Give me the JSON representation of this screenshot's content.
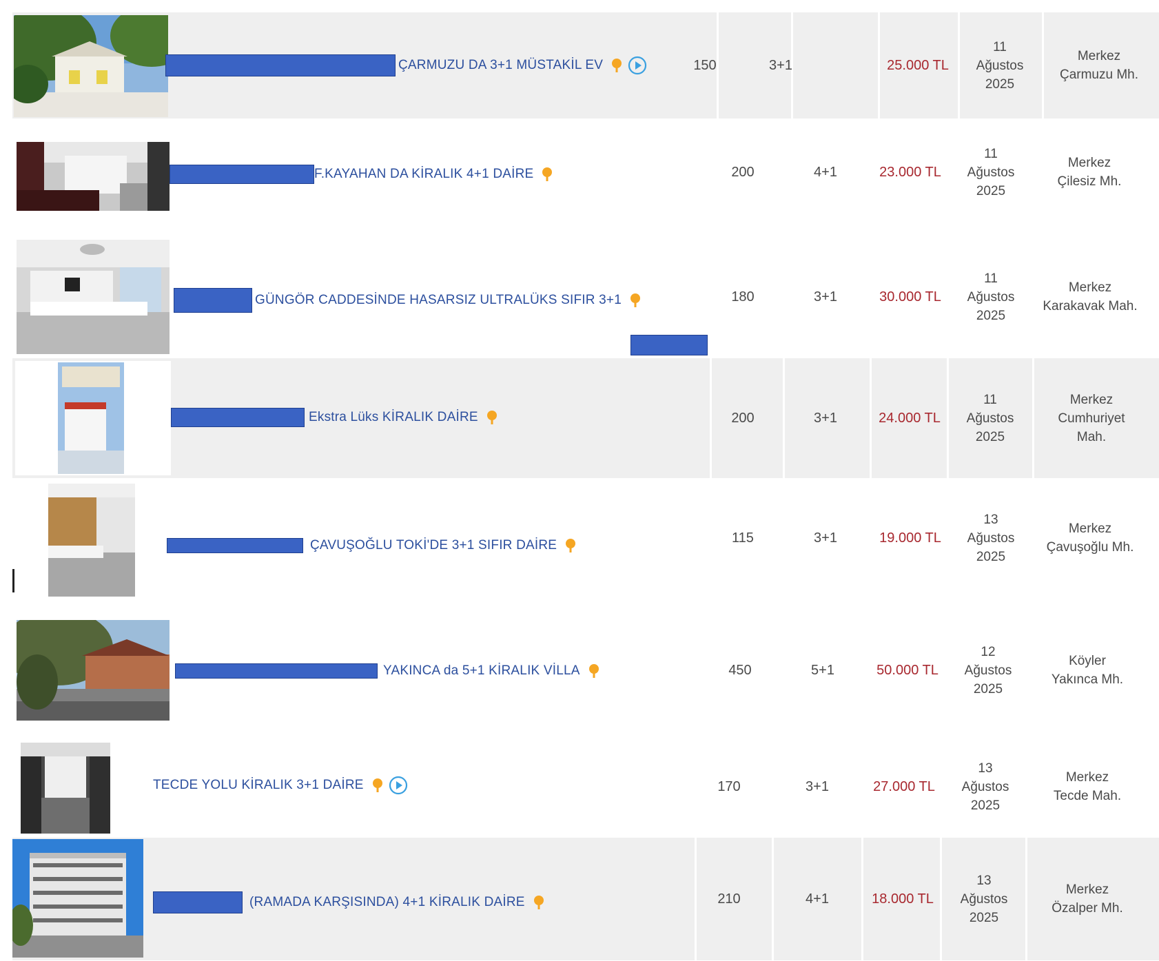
{
  "listings": [
    {
      "title": "ÇARMUZU DA 3+1 MÜSTAKİL EV",
      "m2": "150",
      "rooms": "3+1",
      "price": "25.000 TL",
      "day": "11",
      "month": "Ağustos",
      "year": "2025",
      "district": "Merkez",
      "neighborhood": "Çarmuzu Mh.",
      "has_video": true
    },
    {
      "title": "F.KAYAHAN DA KİRALIK 4+1 DAİRE",
      "m2": "200",
      "rooms": "4+1",
      "price": "23.000 TL",
      "day": "11",
      "month": "Ağustos",
      "year": "2025",
      "district": "Merkez",
      "neighborhood": "Çilesiz Mh.",
      "has_video": false
    },
    {
      "title": "GÜNGÖR CADDESİNDE HASARSIZ ULTRALÜKS SIFIR 3+1",
      "m2": "180",
      "rooms": "3+1",
      "price": "30.000 TL",
      "day": "11",
      "month": "Ağustos",
      "year": "2025",
      "district": "Merkez",
      "neighborhood": "Karakavak Mah.",
      "has_video": false
    },
    {
      "title": "Ekstra Lüks KİRALIK DAİRE",
      "m2": "200",
      "rooms": "3+1",
      "price": "24.000 TL",
      "day": "11",
      "month": "Ağustos",
      "year": "2025",
      "district": "Merkez",
      "neighborhood": "Cumhuriyet Mah.",
      "has_video": false
    },
    {
      "title": "ÇAVUŞOĞLU TOKİ'DE 3+1 SIFIR DAİRE",
      "m2": "115",
      "rooms": "3+1",
      "price": "19.000 TL",
      "day": "13",
      "month": "Ağustos",
      "year": "2025",
      "district": "Merkez",
      "neighborhood": "Çavuşoğlu Mh.",
      "has_video": false
    },
    {
      "title": "YAKINCA da 5+1 KİRALIK VİLLA",
      "m2": "450",
      "rooms": "5+1",
      "price": "50.000 TL",
      "day": "12",
      "month": "Ağustos",
      "year": "2025",
      "district": "Köyler",
      "neighborhood": "Yakınca Mh.",
      "has_video": false
    },
    {
      "title": "TECDE YOLU KİRALIK 3+1 DAİRE",
      "m2": "170",
      "rooms": "3+1",
      "price": "27.000 TL",
      "day": "13",
      "month": "Ağustos",
      "year": "2025",
      "district": "Merkez",
      "neighborhood": "Tecde Mah.",
      "has_video": true
    },
    {
      "title": "(RAMADA KARŞISINDA) 4+1 KİRALIK DAİRE",
      "m2": "210",
      "rooms": "4+1",
      "price": "18.000 TL",
      "day": "13",
      "month": "Ağustos",
      "year": "2025",
      "district": "Merkez",
      "neighborhood": "Özalper Mh.",
      "has_video": false
    }
  ],
  "icons": {
    "marker": "pin-icon",
    "video": "video-play-icon"
  },
  "colors": {
    "title": "#2c4f9e",
    "price": "#a8282f",
    "redaction": "#3a63c4",
    "pin": "#f5a623",
    "play": "#3aa0e0",
    "row_shade": "#efefef"
  }
}
